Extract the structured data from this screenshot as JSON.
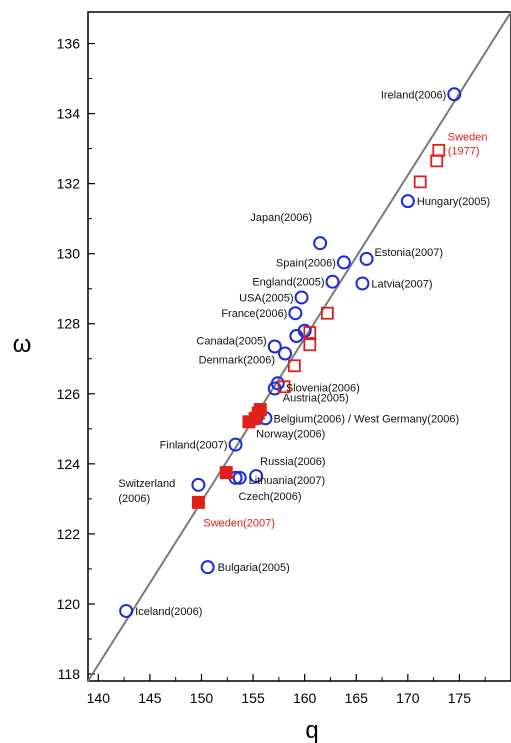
{
  "chart_data": {
    "type": "scatter",
    "xlabel": "q",
    "ylabel": "ω",
    "xlim": [
      139,
      180
    ],
    "ylim": [
      117.8,
      136.9
    ],
    "x_ticks": [
      "140",
      "145",
      "150",
      "155",
      "160",
      "165",
      "170",
      "175"
    ],
    "y_ticks": [
      "118",
      "120",
      "122",
      "124",
      "126",
      "128",
      "130",
      "132",
      "134",
      "136"
    ],
    "fit_line": {
      "x": [
        139,
        180
      ],
      "y": [
        117.8,
        136.9
      ]
    },
    "series": [
      {
        "marker": "open-circle",
        "color": "#1a2bdc",
        "points": [
          {
            "x": 174.5,
            "y": 134.55,
            "label": "Ireland(2006)"
          },
          {
            "x": 170.0,
            "y": 131.5,
            "label": "Hungary(2005)"
          },
          {
            "x": 161.5,
            "y": 130.3,
            "label": "Japan(2006)"
          },
          {
            "x": 166.0,
            "y": 129.85,
            "label": "Estonia(2007)"
          },
          {
            "x": 163.8,
            "y": 129.75,
            "label": "Spain(2006)"
          },
          {
            "x": 162.7,
            "y": 129.2,
            "label": "England(2005)"
          },
          {
            "x": 165.6,
            "y": 129.15,
            "label": "Latvia(2007)"
          },
          {
            "x": 159.7,
            "y": 128.75,
            "label": "USA(2005)"
          },
          {
            "x": 159.1,
            "y": 128.3,
            "label": "France(2006)"
          },
          {
            "x": 160.0,
            "y": 127.8,
            "label": ""
          },
          {
            "x": 159.2,
            "y": 127.65,
            "label": ""
          },
          {
            "x": 157.1,
            "y": 127.35,
            "label": "Canada(2005)"
          },
          {
            "x": 158.1,
            "y": 127.15,
            "label": "Denmark(2006)"
          },
          {
            "x": 157.4,
            "y": 126.3,
            "label": "Slovenia(2006)"
          },
          {
            "x": 157.1,
            "y": 126.15,
            "label": "Austria(2005)"
          },
          {
            "x": 156.2,
            "y": 125.3,
            "label": "Belgium(2006) / West Germany(2006)"
          },
          {
            "x": 155.3,
            "y": 125.3,
            "label": "Norway(2006)"
          },
          {
            "x": 153.3,
            "y": 124.55,
            "label": "Finland(2007)"
          },
          {
            "x": 155.3,
            "y": 123.65,
            "label": "Russia(2006)"
          },
          {
            "x": 153.7,
            "y": 123.6,
            "label": "Lithuania(2007)"
          },
          {
            "x": 153.3,
            "y": 123.6,
            "label": "Czech(2006)"
          },
          {
            "x": 149.7,
            "y": 123.4,
            "label": "Switzerland (2006)"
          },
          {
            "x": 150.6,
            "y": 121.05,
            "label": "Bulgaria(2005)"
          },
          {
            "x": 142.7,
            "y": 119.8,
            "label": "Iceland(2006)"
          }
        ]
      },
      {
        "marker": "open-square",
        "color": "#e0201b",
        "points": [
          {
            "x": 173.0,
            "y": 132.95,
            "label": "Sweden (1977)"
          },
          {
            "x": 172.8,
            "y": 132.65,
            "label": ""
          },
          {
            "x": 171.2,
            "y": 132.05,
            "label": ""
          },
          {
            "x": 162.2,
            "y": 128.3,
            "label": ""
          },
          {
            "x": 160.5,
            "y": 127.75,
            "label": ""
          },
          {
            "x": 160.5,
            "y": 127.4,
            "label": ""
          },
          {
            "x": 159.0,
            "y": 126.8,
            "label": ""
          },
          {
            "x": 158.0,
            "y": 126.2,
            "label": ""
          }
        ]
      },
      {
        "marker": "filled-square",
        "color": "#e0201b",
        "points": [
          {
            "x": 155.7,
            "y": 125.55,
            "label": ""
          },
          {
            "x": 155.5,
            "y": 125.45,
            "label": ""
          },
          {
            "x": 155.2,
            "y": 125.3,
            "label": ""
          },
          {
            "x": 154.6,
            "y": 125.2,
            "label": ""
          },
          {
            "x": 152.4,
            "y": 123.75,
            "label": ""
          },
          {
            "x": 149.7,
            "y": 122.9,
            "label": "Sweden(2007)"
          }
        ]
      }
    ]
  }
}
